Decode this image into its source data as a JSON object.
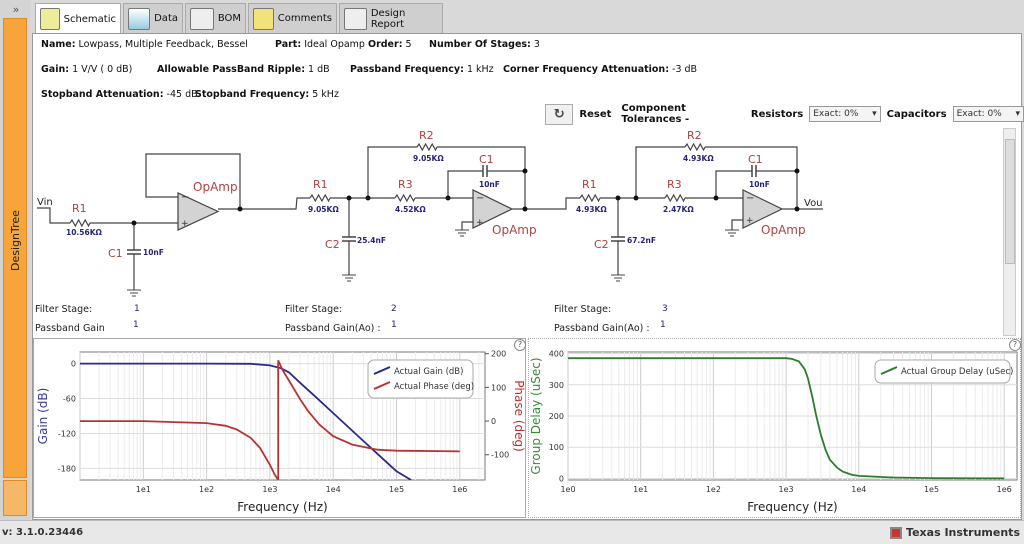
{
  "sidebar": {
    "expand": "»",
    "label": "DesignTree"
  },
  "tabs": [
    {
      "label": "Schematic",
      "icon": "schematic-icon"
    },
    {
      "label": "Data",
      "icon": "chart-icon"
    },
    {
      "label": "BOM",
      "icon": "list-icon"
    },
    {
      "label": "Comments",
      "icon": "note-icon"
    },
    {
      "label": "Design Report",
      "icon": "report-icon"
    }
  ],
  "info": {
    "name_label": "Name:",
    "name": "Lowpass, Multiple Feedback, Bessel",
    "part_label": "Part:",
    "part": "Ideal Opamp",
    "order_label": "Order:",
    "order": "5",
    "stages_label": "Number Of Stages:",
    "stages": "3",
    "gain_label": "Gain:",
    "gain": "1 V/V ( 0 dB)",
    "ripple_label": "Allowable PassBand Ripple:",
    "ripple": "1 dB",
    "pbfreq_label": "Passband Frequency:",
    "pbfreq": "1 kHz",
    "corner_label": "Corner Frequency Attenuation:",
    "corner": "-3 dB",
    "sbatt_label": "Stopband Attenuation:",
    "sbatt": "-45 dB",
    "sbfreq_label": "Stopband Frequency:",
    "sbfreq": "5 kHz"
  },
  "toolbar": {
    "reset": "Reset",
    "tolerances": "Component Tolerances -",
    "resistors": "Resistors",
    "resistors_value": "Exact: 0%",
    "capacitors": "Capacitors",
    "capacitors_value": "Exact: 0%"
  },
  "schematic": {
    "vin": "Vin",
    "vout": "Vou",
    "opamp": "OpAmp",
    "s1": {
      "r1": "R1",
      "r1v": "10.56KΩ",
      "c1": "C1",
      "c1v": "10nF"
    },
    "s2": {
      "r1": "R1",
      "r1v": "9.05KΩ",
      "r2": "R2",
      "r2v": "9.05KΩ",
      "r3": "R3",
      "r3v": "4.52KΩ",
      "c1": "C1",
      "c1v": "10nF",
      "c2": "C2",
      "c2v": "25.4nF"
    },
    "s3": {
      "r1": "R1",
      "r1v": "4.93KΩ",
      "r2": "R2",
      "r2v": "4.93KΩ",
      "r3": "R3",
      "r3v": "2.47KΩ",
      "c1": "C1",
      "c1v": "10nF",
      "c2": "C2",
      "c2v": "67.2nF"
    },
    "stages": [
      {
        "stage_label": "Filter Stage:",
        "stage": "1",
        "gain_label": "Passband Gain",
        "gain": "1"
      },
      {
        "stage_label": "Filter Stage:",
        "stage": "2",
        "gain_label": "Passband Gain(Ao) :",
        "gain": "1"
      },
      {
        "stage_label": "Filter Stage:",
        "stage": "3",
        "gain_label": "Passband Gain(Ao) :",
        "gain": "1"
      }
    ]
  },
  "help": "?",
  "chart_data": [
    {
      "type": "line",
      "xlabel": "Frequency (Hz)",
      "ylabel": "Gain (dB)",
      "y2label": "Phase (deg)",
      "xscale": "log",
      "xlim": [
        1,
        2500000
      ],
      "ylim": [
        -200,
        20
      ],
      "y2lim": [
        -175,
        205
      ],
      "xticks": [
        "1e1",
        "1e2",
        "1e3",
        "1e4",
        "1e5",
        "1e6"
      ],
      "yticks": [
        "0",
        "-60",
        "-120",
        "-180"
      ],
      "y2ticks": [
        "200",
        "100",
        "0",
        "-100"
      ],
      "legend": "top-right",
      "grid": true,
      "series": [
        {
          "name": "Actual Gain (dB)",
          "color": "#2a2a8c",
          "axis": "left",
          "x": [
            1,
            10,
            100,
            500,
            1000,
            1500,
            2000,
            3000,
            5000,
            10000,
            30000,
            100000,
            170000
          ],
          "y": [
            0,
            0,
            0,
            -0.3,
            -3,
            -8,
            -15,
            -33,
            -55,
            -85,
            -133,
            -185,
            -200
          ]
        },
        {
          "name": "Actual Phase (deg)",
          "color": "#b83232",
          "axis": "right",
          "x": [
            1,
            10,
            100,
            200,
            300,
            500,
            700,
            1000,
            1200,
            1350,
            1350,
            1600,
            2000,
            3000,
            4000,
            6000,
            10000,
            20000,
            50000,
            100000,
            1000000
          ],
          "y": [
            0,
            0,
            -6,
            -14,
            -25,
            -50,
            -80,
            -130,
            -160,
            -175,
            180,
            150,
            120,
            65,
            30,
            -10,
            -45,
            -70,
            -85,
            -88,
            -90
          ]
        }
      ]
    },
    {
      "type": "line",
      "xlabel": "Frequency (Hz)",
      "ylabel": "Group Delay (uSec)",
      "xscale": "log",
      "xlim": [
        1,
        1500000
      ],
      "ylim": [
        -5,
        405
      ],
      "xticks": [
        "1e0",
        "1e1",
        "1e2",
        "1e3",
        "1e4",
        "1e5",
        "1e6"
      ],
      "yticks": [
        "400",
        "300",
        "200",
        "100",
        "0"
      ],
      "legend": "top-right",
      "grid": true,
      "series": [
        {
          "name": "Actual Group Delay (uSec)",
          "color": "#2e7d2e",
          "x": [
            1,
            10,
            100,
            1000,
            1200,
            1500,
            1800,
            2000,
            2300,
            2600,
            3000,
            3500,
            4000,
            5000,
            6000,
            8000,
            10000,
            30000,
            100000,
            1000000
          ],
          "y": [
            385,
            385,
            385,
            385,
            383,
            375,
            350,
            320,
            260,
            200,
            140,
            90,
            60,
            35,
            22,
            12,
            8,
            3,
            1,
            0
          ]
        }
      ]
    }
  ],
  "status": {
    "version": "v: 3.1.0.23446",
    "brand": "Texas Instruments"
  }
}
